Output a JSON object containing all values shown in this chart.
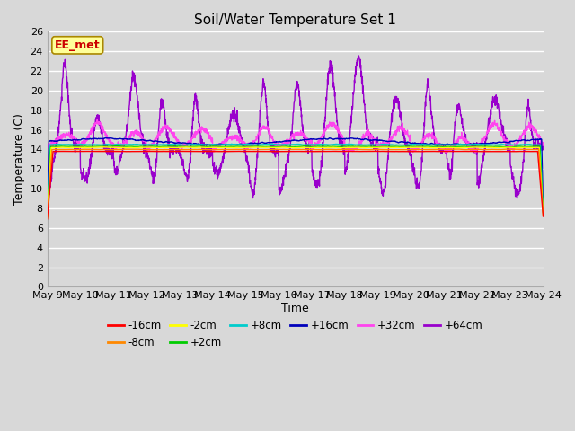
{
  "title": "Soil/Water Temperature Set 1",
  "xlabel": "Time",
  "ylabel": "Temperature (C)",
  "ylim": [
    0,
    26
  ],
  "yticks": [
    0,
    2,
    4,
    6,
    8,
    10,
    12,
    14,
    16,
    18,
    20,
    22,
    24,
    26
  ],
  "n_days": 15,
  "xtick_labels": [
    "May 9",
    "May 10",
    "May 11",
    "May 12",
    "May 13",
    "May 14",
    "May 15",
    "May 16",
    "May 17",
    "May 18",
    "May 19",
    "May 20",
    "May 21",
    "May 22",
    "May 23",
    "May 24"
  ],
  "background_color": "#d8d8d8",
  "colors": {
    "-16cm": "#ff0000",
    "-8cm": "#ff8800",
    "-2cm": "#ffff00",
    "+2cm": "#00cc00",
    "+8cm": "#00cccc",
    "+16cm": "#0000bb",
    "+32cm": "#ff44ee",
    "+64cm": "#9900cc"
  },
  "legend_label": "EE_met",
  "legend_box_color": "#ffff99",
  "legend_box_border": "#cc0000"
}
